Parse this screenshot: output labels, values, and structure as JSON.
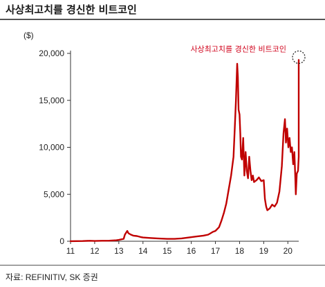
{
  "title": "사상최고치를 경신한 비트코인",
  "source": "자료: REFINITIV, SK 증권",
  "chart_data": {
    "type": "line",
    "ylabel": "($)",
    "xlabel": "",
    "ylim": [
      0,
      20000
    ],
    "xlim": [
      11,
      20.45
    ],
    "y_ticks": [
      0,
      5000,
      10000,
      15000,
      20000
    ],
    "y_tick_labels": [
      "0",
      "5,000",
      "10,000",
      "15,000",
      "20,000"
    ],
    "x_ticks": [
      11,
      12,
      13,
      14,
      15,
      16,
      17,
      18,
      19,
      20
    ],
    "x_tick_labels": [
      "11",
      "12",
      "13",
      "14",
      "15",
      "16",
      "17",
      "18",
      "19",
      "20"
    ],
    "grid": false,
    "line_color": "#c00000",
    "annotation": {
      "text": "사상최고치를 경신한 비트코인",
      "x": 20.3,
      "y": 19300,
      "color": "#d0021b"
    },
    "series": [
      {
        "points": [
          [
            11.0,
            10
          ],
          [
            11.5,
            20
          ],
          [
            11.8,
            50
          ],
          [
            12.0,
            30
          ],
          [
            12.3,
            50
          ],
          [
            12.6,
            60
          ],
          [
            12.9,
            100
          ],
          [
            13.0,
            150
          ],
          [
            13.2,
            250
          ],
          [
            13.25,
            700
          ],
          [
            13.3,
            900
          ],
          [
            13.35,
            1100
          ],
          [
            13.4,
            850
          ],
          [
            13.5,
            700
          ],
          [
            13.6,
            600
          ],
          [
            13.75,
            550
          ],
          [
            13.9,
            450
          ],
          [
            14.0,
            400
          ],
          [
            14.3,
            350
          ],
          [
            14.6,
            300
          ],
          [
            15.0,
            250
          ],
          [
            15.3,
            250
          ],
          [
            15.6,
            300
          ],
          [
            15.9,
            400
          ],
          [
            16.2,
            500
          ],
          [
            16.5,
            600
          ],
          [
            16.7,
            700
          ],
          [
            16.8,
            850
          ],
          [
            16.9,
            1000
          ],
          [
            17.0,
            1100
          ],
          [
            17.15,
            1500
          ],
          [
            17.25,
            2200
          ],
          [
            17.35,
            3000
          ],
          [
            17.45,
            4000
          ],
          [
            17.55,
            5500
          ],
          [
            17.65,
            7000
          ],
          [
            17.75,
            9000
          ],
          [
            17.8,
            12000
          ],
          [
            17.85,
            15000
          ],
          [
            17.9,
            18900
          ],
          [
            17.93,
            17500
          ],
          [
            17.96,
            14000
          ],
          [
            18.0,
            13500
          ],
          [
            18.03,
            11500
          ],
          [
            18.06,
            9000
          ],
          [
            18.1,
            8700
          ],
          [
            18.15,
            11000
          ],
          [
            18.2,
            7000
          ],
          [
            18.25,
            9500
          ],
          [
            18.3,
            7500
          ],
          [
            18.35,
            6700
          ],
          [
            18.4,
            9000
          ],
          [
            18.45,
            7500
          ],
          [
            18.5,
            6500
          ],
          [
            18.55,
            7000
          ],
          [
            18.6,
            6300
          ],
          [
            18.7,
            6500
          ],
          [
            18.8,
            6800
          ],
          [
            18.9,
            6400
          ],
          [
            19.0,
            6500
          ],
          [
            19.05,
            4500
          ],
          [
            19.1,
            3700
          ],
          [
            19.15,
            3300
          ],
          [
            19.25,
            3500
          ],
          [
            19.35,
            3900
          ],
          [
            19.45,
            3700
          ],
          [
            19.55,
            4100
          ],
          [
            19.65,
            5300
          ],
          [
            19.75,
            8000
          ],
          [
            19.82,
            11500
          ],
          [
            19.88,
            13000
          ],
          [
            19.92,
            10500
          ],
          [
            19.97,
            12000
          ],
          [
            20.02,
            10000
          ],
          [
            20.07,
            11000
          ],
          [
            20.12,
            9500
          ],
          [
            20.17,
            10000
          ],
          [
            20.22,
            8200
          ],
          [
            20.27,
            9500
          ],
          [
            20.3,
            7300
          ],
          [
            20.33,
            5000
          ],
          [
            20.37,
            7200
          ],
          [
            20.42,
            7500
          ],
          [
            20.47,
            9000
          ],
          [
            20.52,
            9500
          ],
          [
            20.57,
            9200
          ],
          [
            20.62,
            10000
          ],
          [
            20.67,
            10500
          ],
          [
            20.72,
            11000
          ],
          [
            20.77,
            10800
          ],
          [
            20.82,
            11500
          ],
          [
            20.87,
            13000
          ],
          [
            20.9,
            15000
          ],
          [
            20.93,
            17500
          ],
          [
            20.96,
            19300
          ]
        ]
      }
    ]
  }
}
